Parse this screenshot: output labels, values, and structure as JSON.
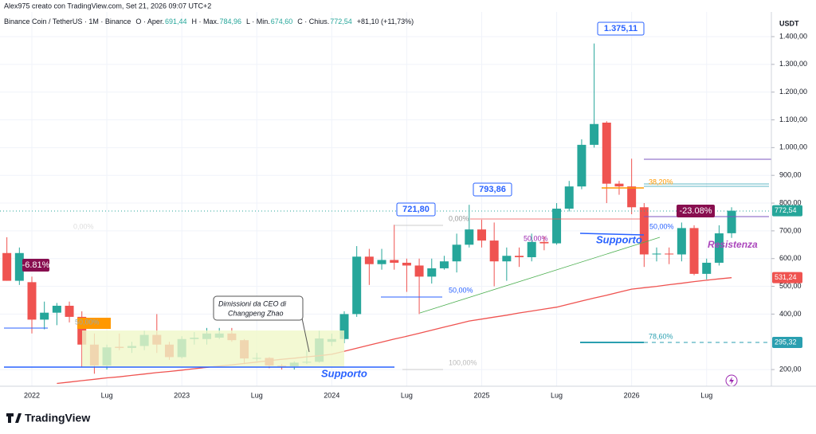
{
  "header": {
    "author": "Alex975 creato con TradingView.com, Set 21, 2026 09:07 UTC+2",
    "legend": [
      "Binance Coin / TetherUS · 1M · Binance",
      "O · Aper.",
      "691,44",
      "H · Max.",
      "784,96",
      "L · Min.",
      "674,60",
      "C · Chius.",
      "772,54",
      "+81,10 (+11,73%)"
    ]
  },
  "chart_data": {
    "type": "candlestick",
    "currency": "USDT",
    "categories": [
      null,
      null,
      "2022",
      null,
      null,
      null,
      null,
      null,
      "Lug",
      null,
      null,
      null,
      null,
      null,
      "2023",
      null,
      null,
      null,
      null,
      null,
      "Lug",
      null,
      null,
      null,
      null,
      null,
      "2024",
      null,
      null,
      null,
      null,
      null,
      "Lug",
      null,
      null,
      null,
      null,
      null,
      "2025",
      null,
      null,
      null,
      null,
      null,
      "Lug",
      null,
      null,
      null,
      null,
      null,
      "2026",
      null,
      null,
      null,
      null,
      null,
      "Lug",
      null,
      null
    ],
    "open": [
      620,
      520,
      515,
      380,
      405,
      430,
      390,
      290,
      215,
      282,
      278,
      285,
      325,
      290,
      245,
      310,
      310,
      315,
      330,
      306,
      240,
      242,
      214,
      212,
      225,
      228,
      300,
      310,
      400,
      607,
      580,
      595,
      585,
      575,
      535,
      565,
      590,
      650,
      705,
      665,
      590,
      610,
      605,
      660,
      655,
      780,
      860,
      1010,
      1090,
      870,
      860,
      785,
      615,
      618,
      615,
      710,
      545,
      585,
      691.44
    ],
    "high": [
      677,
      640,
      535,
      445,
      440,
      445,
      410,
      330,
      290,
      330,
      300,
      340,
      400,
      300,
      320,
      335,
      350,
      350,
      350,
      310,
      260,
      245,
      220,
      230,
      270,
      340,
      330,
      410,
      645,
      635,
      635,
      721.8,
      600,
      600,
      600,
      610,
      690,
      793.86,
      740,
      730,
      640,
      640,
      690,
      680,
      800,
      880,
      1030,
      1375.11,
      1095,
      880,
      960,
      800,
      640,
      640,
      730,
      720,
      600,
      720,
      784.96
    ],
    "low": [
      520,
      505,
      330,
      345,
      360,
      370,
      210,
      185,
      200,
      270,
      260,
      270,
      260,
      235,
      240,
      290,
      290,
      310,
      300,
      220,
      230,
      205,
      200,
      200,
      220,
      225,
      285,
      295,
      390,
      505,
      560,
      560,
      480,
      400,
      510,
      560,
      550,
      640,
      640,
      500,
      520,
      570,
      590,
      630,
      650,
      770,
      850,
      1000,
      800,
      830,
      760,
      570,
      590,
      580,
      590,
      540,
      525,
      575,
      674.6
    ],
    "close": [
      520,
      620,
      380,
      405,
      430,
      390,
      290,
      215,
      280,
      278,
      285,
      325,
      290,
      245,
      310,
      315,
      330,
      330,
      306,
      240,
      242,
      215,
      212,
      225,
      228,
      312,
      310,
      400,
      607,
      580,
      595,
      585,
      575,
      535,
      565,
      590,
      650,
      705,
      665,
      590,
      610,
      605,
      660,
      655,
      780,
      860,
      1010,
      1085,
      870,
      860,
      785,
      615,
      618,
      615,
      710,
      545,
      585,
      691,
      772.54
    ],
    "close_labels": [
      null,
      null,
      null,
      null,
      null,
      null,
      null,
      null,
      null,
      null,
      null,
      null,
      null,
      null,
      null,
      null,
      null,
      null,
      null,
      null,
      null,
      null,
      null,
      null,
      null,
      null,
      null,
      null,
      null,
      null,
      null,
      null,
      null,
      null,
      null,
      null,
      null,
      null,
      null,
      null,
      null,
      null,
      null,
      null,
      null,
      null,
      null,
      null,
      null,
      null,
      null,
      null,
      null,
      null,
      null,
      null,
      null,
      null,
      "772,54"
    ],
    "up_color": "#26a69a",
    "down_color": "#ef5350",
    "ma": {
      "color": "#ef5350",
      "values": [
        null,
        null,
        null,
        null,
        150,
        155,
        160,
        165,
        170,
        174,
        179,
        184,
        189,
        193,
        198,
        203,
        208,
        213,
        217,
        222,
        227,
        232,
        237,
        241,
        246,
        250,
        255,
        266,
        277,
        288,
        299,
        310,
        320,
        331,
        342,
        353,
        364,
        375,
        382,
        389,
        396,
        404,
        411,
        418,
        425,
        436,
        447,
        458,
        468,
        479,
        490,
        495,
        500,
        506,
        511,
        517,
        522,
        527,
        531.24
      ],
      "last_label": "531,24"
    },
    "level_label": "295,32",
    "ylim": [
      140,
      1470
    ],
    "yticks": [
      {
        "value": 200,
        "label": "200,00"
      },
      {
        "value": 400,
        "label": "400,00"
      },
      {
        "value": 500,
        "label": "500,00"
      },
      {
        "value": 600,
        "label": "600,00"
      },
      {
        "value": 700,
        "label": "700,00"
      },
      {
        "value": 800,
        "label": "800,00"
      },
      {
        "value": 900,
        "label": "900,00"
      },
      {
        "value": 1000,
        "label": "1.000,00"
      },
      {
        "value": 1100,
        "label": "1.100,00"
      },
      {
        "value": 1200,
        "label": "1.200,00"
      },
      {
        "value": 1300,
        "label": "1.300,00"
      },
      {
        "value": 1400,
        "label": "1.400,00"
      }
    ],
    "grid": true,
    "annotations": [
      "1.375,11",
      "721,80",
      "793,86",
      "-23.08%",
      "-6.81%",
      "Supporto",
      "Supporto",
      "Resistenza",
      "Dimissioni da CEO di",
      "Changpeng Zhao",
      "0,00%",
      "50,00%",
      "100,00%",
      "78,60%",
      "38,20%",
      "50,00%",
      "50,00%",
      "0,00%",
      "50,00%"
    ]
  },
  "footer": {
    "brand": "TradingView"
  }
}
